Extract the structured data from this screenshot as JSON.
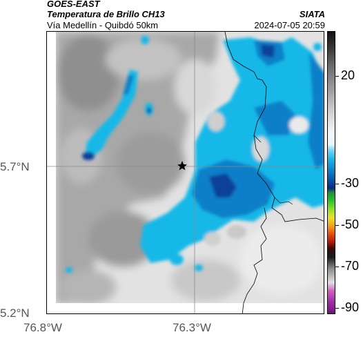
{
  "header": {
    "satellite": "GOES-EAST",
    "product": "Temperatura de Brillo CH13",
    "region": "Vía Medellín - Quibdó 50km",
    "agency": "SIATA",
    "timestamp": "2024-07-05 20:59"
  },
  "map": {
    "lat_labels": [
      "5.7°N",
      "5.2°N"
    ],
    "lon_labels": [
      "76.8°W",
      "76.3°W"
    ],
    "marker_icon": "star-icon",
    "colors": {
      "gray_cloud": "#a9a9a9",
      "light_cloud": "#e4e4e4",
      "cold_cyan": "#12b8e8",
      "cold_blue": "#0a7fc8",
      "deep_blue": "#0a3f98",
      "border": "#000000"
    }
  },
  "colorbar": {
    "labels": [
      "20",
      "-30",
      "-50",
      "-70",
      "-90"
    ]
  }
}
